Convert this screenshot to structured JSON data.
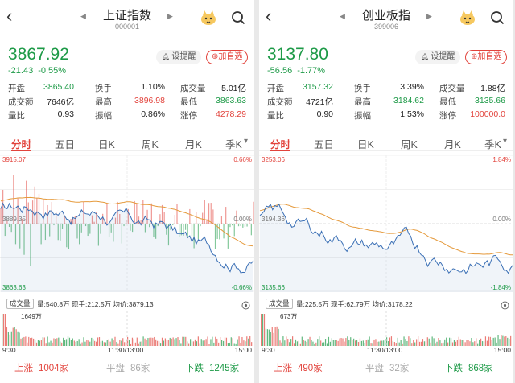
{
  "panels": [
    {
      "title": "上证指数",
      "code": "000001",
      "price": "3867.92",
      "change": "-21.43",
      "change_pct": "-0.55%",
      "alert_label": "设提醒",
      "fav_label": "加自选",
      "stats": [
        [
          {
            "label": "开盘",
            "value": "3865.40",
            "color": "green"
          },
          {
            "label": "换手",
            "value": "1.10%",
            "color": ""
          },
          {
            "label": "成交量",
            "value": "5.01亿",
            "color": ""
          }
        ],
        [
          {
            "label": "成交额",
            "value": "7646亿",
            "color": ""
          },
          {
            "label": "最高",
            "value": "3896.98",
            "color": "red"
          },
          {
            "label": "最低",
            "value": "3863.63",
            "color": "green"
          }
        ],
        [
          {
            "label": "量比",
            "value": "0.93",
            "color": ""
          },
          {
            "label": "振幅",
            "value": "0.86%",
            "color": ""
          },
          {
            "label": "涨停",
            "value": "4278.29",
            "color": "red"
          }
        ]
      ],
      "tabs": [
        "分时",
        "五日",
        "日K",
        "周K",
        "月K",
        "季K"
      ],
      "active_tab": 0,
      "chart": {
        "high_label": "3915.07",
        "mid_label": "3889.35",
        "low_label": "3863.63",
        "high_pct": "0.66%",
        "mid_pct": "0.00%",
        "low_pct": "-0.66%"
      },
      "volume": {
        "btn": "成交量",
        "info": "量:540.8万  现手:212.5万  均价:3879.13",
        "max_label": "1649万"
      },
      "times": [
        "9:30",
        "11:30/13:00",
        "15:00"
      ],
      "footer": {
        "up": "上涨",
        "up_n": "1004家",
        "flat": "平盘",
        "flat_n": "86家",
        "down": "下跌",
        "down_n": "1245家"
      }
    },
    {
      "title": "创业板指",
      "code": "399006",
      "price": "3137.80",
      "change": "-56.56",
      "change_pct": "-1.77%",
      "alert_label": "设提醒",
      "fav_label": "加自选",
      "stats": [
        [
          {
            "label": "开盘",
            "value": "3157.32",
            "color": "green"
          },
          {
            "label": "换手",
            "value": "3.39%",
            "color": ""
          },
          {
            "label": "成交量",
            "value": "1.88亿",
            "color": ""
          }
        ],
        [
          {
            "label": "成交额",
            "value": "4721亿",
            "color": ""
          },
          {
            "label": "最高",
            "value": "3184.62",
            "color": "green"
          },
          {
            "label": "最低",
            "value": "3135.66",
            "color": "green"
          }
        ],
        [
          {
            "label": "量比",
            "value": "0.90",
            "color": ""
          },
          {
            "label": "振幅",
            "value": "1.53%",
            "color": ""
          },
          {
            "label": "涨停",
            "value": "100000.0",
            "color": "red"
          }
        ]
      ],
      "tabs": [
        "分时",
        "五日",
        "日K",
        "周K",
        "月K",
        "季K"
      ],
      "active_tab": 0,
      "chart": {
        "high_label": "3253.06",
        "mid_label": "3194.36",
        "low_label": "3135.66",
        "high_pct": "1.84%",
        "mid_pct": "0.00%",
        "low_pct": "-1.84%"
      },
      "volume": {
        "btn": "成交量",
        "info": "量:225.5万  现手:62.79万  均价:3178.22",
        "max_label": "673万"
      },
      "times": [
        "9:30",
        "11:30/13:00",
        "15:00"
      ],
      "footer": {
        "up": "上涨",
        "up_n": "490家",
        "flat": "平盘",
        "flat_n": "32家",
        "down": "下跌",
        "down_n": "868家"
      }
    }
  ],
  "colors": {
    "up": "#e2433c",
    "down": "#1d9a47",
    "price_line": "#3a6fb5",
    "avg_line": "#e59a3c"
  }
}
